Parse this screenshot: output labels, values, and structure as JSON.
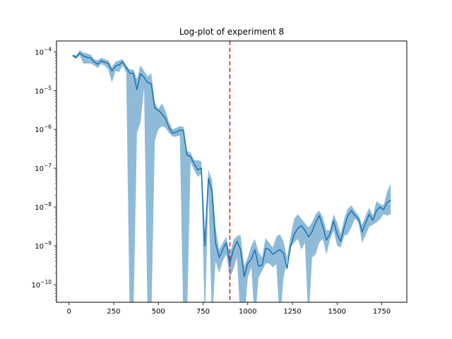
{
  "chart_data": {
    "type": "line",
    "title": "Log-plot of experiment 8",
    "xlabel": "",
    "ylabel": "",
    "yscale": "log",
    "xlim": [
      -70,
      1890
    ],
    "ylim": [
      3.5e-11,
      0.00019
    ],
    "xticks": [
      0,
      250,
      500,
      750,
      1000,
      1250,
      1500,
      1750
    ],
    "yticks": [
      {
        "value": 1e-10,
        "label": "10",
        "exp": "−10"
      },
      {
        "value": 1e-09,
        "label": "10",
        "exp": "−9"
      },
      {
        "value": 1e-08,
        "label": "10",
        "exp": "−8"
      },
      {
        "value": 1e-07,
        "label": "10",
        "exp": "−7"
      },
      {
        "value": 1e-06,
        "label": "10",
        "exp": "−6"
      },
      {
        "value": 1e-05,
        "label": "10",
        "exp": "−5"
      },
      {
        "value": 0.0001,
        "label": "10",
        "exp": "−4"
      }
    ],
    "grid": false,
    "vline": {
      "x": 900,
      "color": "#d62728",
      "style": "dashed"
    },
    "series": [
      {
        "color": "#1f77b4",
        "band_color": "#8fbbd9",
        "x": [
          20,
          40,
          60,
          80,
          100,
          120,
          140,
          160,
          180,
          200,
          220,
          240,
          260,
          280,
          300,
          320,
          340,
          360,
          380,
          400,
          420,
          440,
          460,
          480,
          500,
          520,
          540,
          560,
          580,
          600,
          620,
          640,
          660,
          680,
          700,
          720,
          740,
          760,
          780,
          800,
          820,
          840,
          860,
          880,
          900,
          920,
          940,
          960,
          980,
          1000,
          1020,
          1040,
          1060,
          1080,
          1100,
          1120,
          1140,
          1160,
          1180,
          1200,
          1220,
          1240,
          1260,
          1280,
          1300,
          1320,
          1340,
          1360,
          1380,
          1400,
          1420,
          1440,
          1460,
          1480,
          1500,
          1520,
          1540,
          1560,
          1580,
          1600,
          1620,
          1640,
          1660,
          1680,
          1700,
          1720,
          1740,
          1760,
          1780,
          1800
        ],
        "values": [
          8e-05,
          7.2e-05,
          9.2e-05,
          7.8e-05,
          7.2e-05,
          7e-05,
          5.5e-05,
          4.8e-05,
          5.8e-05,
          5.4e-05,
          5e-05,
          3.2e-05,
          4.3e-05,
          4.6e-05,
          5.5e-05,
          4e-05,
          2.8e-05,
          2.8e-05,
          1.05e-05,
          2.7e-05,
          2.2e-05,
          1.6e-05,
          1.5e-05,
          3.5e-06,
          3.1e-06,
          2.5e-06,
          1.9e-06,
          1.1e-06,
          8e-07,
          8.5e-07,
          9.5e-07,
          9.5e-07,
          2.2e-07,
          2e-07,
          1.3e-07,
          9e-08,
          1e-07,
          1e-09,
          5.5e-08,
          2.5e-08,
          1.2e-09,
          5e-10,
          8e-10,
          1.2e-09,
          3.5e-10,
          8e-10,
          1.3e-09,
          8e-10,
          1.6e-10,
          3.5e-10,
          4.5e-10,
          8e-10,
          3e-10,
          3.1e-10,
          8.5e-10,
          8e-10,
          6e-10,
          7e-10,
          8e-10,
          6.5e-10,
          2.6e-10,
          1e-09,
          2e-09,
          2.8e-09,
          3.3e-09,
          2.5e-09,
          1.7e-09,
          2.3e-09,
          4e-09,
          6e-09,
          3.2e-09,
          1.4e-09,
          2e-09,
          4.4e-09,
          2e-09,
          1.3e-09,
          3e-09,
          6e-09,
          8e-09,
          6e-09,
          5e-09,
          2.3e-09,
          4e-09,
          6.5e-09,
          4.5e-09,
          8e-09,
          1e-08,
          8.5e-09,
          1.3e-08,
          1.5e-08
        ],
        "lower": [
          7.5e-05,
          6.5e-05,
          8.2e-05,
          5e-05,
          5e-05,
          5e-05,
          4.5e-05,
          3.8e-05,
          4.8e-05,
          4.4e-05,
          3.5e-05,
          1.6e-05,
          3.2e-05,
          3e-05,
          4.4e-05,
          2.9e-05,
          1e-11,
          1e-11,
          8e-07,
          1.5e-06,
          1.2e-05,
          1e-11,
          1e-11,
          5e-07,
          1e-06,
          1.2e-06,
          1.1e-06,
          8e-07,
          6.5e-07,
          6.5e-07,
          7e-07,
          1e-11,
          1e-11,
          1.4e-07,
          9e-08,
          6e-08,
          7e-08,
          1e-11,
          2.4e-08,
          1e-11,
          4e-10,
          2e-10,
          4e-10,
          6e-10,
          1.5e-10,
          2.5e-10,
          5e-10,
          1e-11,
          1e-11,
          1.5e-10,
          2.8e-10,
          1e-11,
          1.5e-10,
          2.2e-10,
          3.5e-10,
          3.5e-10,
          2.8e-10,
          3.4e-10,
          1e-11,
          1.5e-10,
          4e-10,
          9e-10,
          1.2e-09,
          1.5e-09,
          8e-10,
          1.2e-09,
          1e-11,
          5e-10,
          6e-10,
          1.2e-09,
          1.5e-09,
          6e-10,
          1.4e-09,
          2.5e-09,
          1e-09,
          9e-10,
          1.8e-09,
          2e-09,
          3e-09,
          5e-09,
          4e-09,
          1.2e-09,
          1.9e-09,
          3.1e-09,
          3.5e-09,
          4e-09,
          4.8e-09,
          6.5e-09,
          6e-09,
          6.5e-09
        ],
        "upper": [
          8.5e-05,
          8e-05,
          0.00011,
          9.5e-05,
          9e-05,
          8.5e-05,
          6.5e-05,
          6e-05,
          7e-05,
          6.5e-05,
          6e-05,
          4e-05,
          5.5e-05,
          6e-05,
          6.5e-05,
          4.4e-05,
          3.5e-05,
          3.5e-05,
          2e-05,
          4.5e-05,
          3.2e-05,
          2.3e-05,
          2.8e-05,
          5e-06,
          3.4e-06,
          4.7e-06,
          3e-06,
          1.5e-06,
          1e-06,
          1.1e-06,
          1.2e-06,
          1.2e-06,
          2.8e-07,
          2.5e-07,
          1.6e-07,
          1.6e-07,
          1.5e-07,
          1e-09,
          9e-08,
          5e-08,
          3e-09,
          8e-10,
          1.2e-09,
          1.7e-09,
          6e-10,
          1.4e-09,
          1.8e-09,
          1.9e-09,
          3e-10,
          5e-10,
          1e-09,
          1.5e-09,
          7e-10,
          5e-10,
          1.6e-09,
          1.2e-09,
          9e-10,
          1.7e-09,
          2e-09,
          1.3e-09,
          5e-10,
          1.8e-09,
          5e-09,
          6.5e-09,
          5e-09,
          3.8e-09,
          3e-09,
          4e-09,
          6.5e-09,
          8e-09,
          5.5e-09,
          2.5e-09,
          2.5e-09,
          6.5e-09,
          4e-09,
          2e-09,
          5e-09,
          9e-09,
          1.1e-08,
          8e-09,
          6e-09,
          3.5e-09,
          6e-09,
          9.5e-09,
          6e-09,
          1.4e-08,
          1.2e-08,
          1.1e-08,
          2.5e-08,
          4e-08
        ]
      }
    ]
  }
}
